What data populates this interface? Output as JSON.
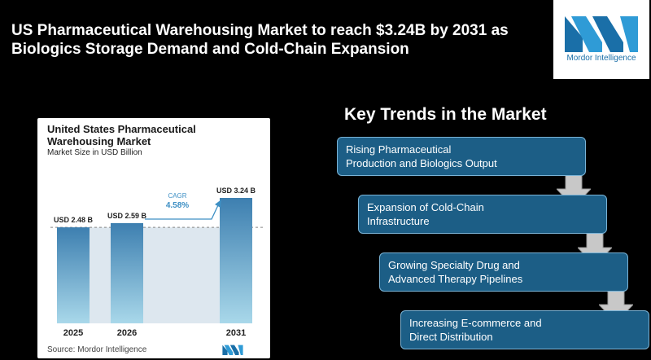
{
  "headline": {
    "line1": "US Pharmaceutical Warehousing Market to reach $3.24B by 2031 as",
    "line2": "Biologics Storage Demand and Cold-Chain Expansion"
  },
  "logo": {
    "text": "Mordor Intelligence"
  },
  "chart_data": {
    "type": "bar",
    "title_line1": "United States Pharmaceutical",
    "title_line2": "Warehousing Market",
    "subtitle": "Market Size in USD Billion",
    "categories": [
      "2025",
      "2026",
      "2031"
    ],
    "values": [
      2.48,
      2.59,
      3.24
    ],
    "value_labels": [
      "USD 2.48 B",
      "USD 2.59 B",
      "USD 3.24 B"
    ],
    "cagr_label": "CAGR",
    "cagr_value": "4.58%",
    "source": "Source:  Mordor Intelligence",
    "colors": {
      "bar_top": "#3d7fb0",
      "bar_bottom": "#a9d8ea",
      "band": "#dde7ef"
    }
  },
  "trends": {
    "title": "Key Trends in the Market",
    "items": [
      {
        "line1": "Rising Pharmaceutical",
        "line2": "Production and Biologics Output"
      },
      {
        "line1": "Expansion of Cold-Chain",
        "line2": "Infrastructure"
      },
      {
        "line1": "Growing Specialty Drug and",
        "line2": "Advanced Therapy Pipelines"
      },
      {
        "line1": "Increasing E-commerce and",
        "line2": "Direct Distribution"
      }
    ]
  }
}
